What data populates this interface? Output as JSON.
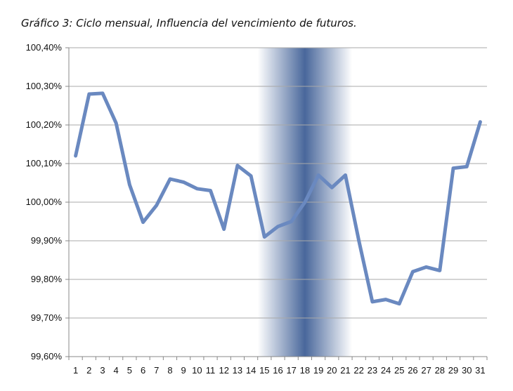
{
  "chart_data": {
    "type": "line",
    "title": "Gráfico 3: Ciclo mensual, Influencia del vencimiento de futuros.",
    "x": [
      1,
      2,
      3,
      4,
      5,
      6,
      7,
      8,
      9,
      10,
      11,
      12,
      13,
      14,
      15,
      16,
      17,
      18,
      19,
      20,
      21,
      22,
      23,
      24,
      25,
      26,
      27,
      28,
      29,
      30,
      31
    ],
    "x_tick_labels": [
      "1",
      "2",
      "3",
      "4",
      "5",
      "6",
      "7",
      "8",
      "9",
      "10",
      "11",
      "12",
      "13",
      "14",
      "15",
      "16",
      "17",
      "18",
      "19",
      "20",
      "21",
      "22",
      "23",
      "24",
      "25",
      "26",
      "27",
      "28",
      "29",
      "30",
      "31"
    ],
    "series": [
      {
        "values": [
          100.12,
          100.28,
          100.282,
          100.205,
          100.045,
          99.948,
          99.992,
          100.06,
          100.052,
          100.035,
          100.03,
          99.93,
          100.095,
          100.068,
          99.91,
          99.937,
          99.95,
          100.0,
          100.07,
          100.038,
          100.07,
          99.9,
          99.742,
          99.748,
          99.737,
          99.82,
          99.832,
          99.823,
          100.088,
          100.092,
          100.208
        ]
      }
    ],
    "ylim": [
      99.6,
      100.4
    ],
    "y_ticks": [
      99.6,
      99.7,
      99.8,
      99.9,
      100.0,
      100.1,
      100.2,
      100.3,
      100.4
    ],
    "y_tick_labels": [
      "99,60%",
      "99,70%",
      "99,80%",
      "99,90%",
      "100,00%",
      "100,10%",
      "100,20%",
      "100,30%",
      "100,40%"
    ],
    "highlight_band": {
      "x_start": 14.5,
      "x_end": 21.5
    },
    "grid": true,
    "line_color": "#6a89c0",
    "band_color": "#3f5f96",
    "xlabel": "",
    "ylabel": ""
  }
}
